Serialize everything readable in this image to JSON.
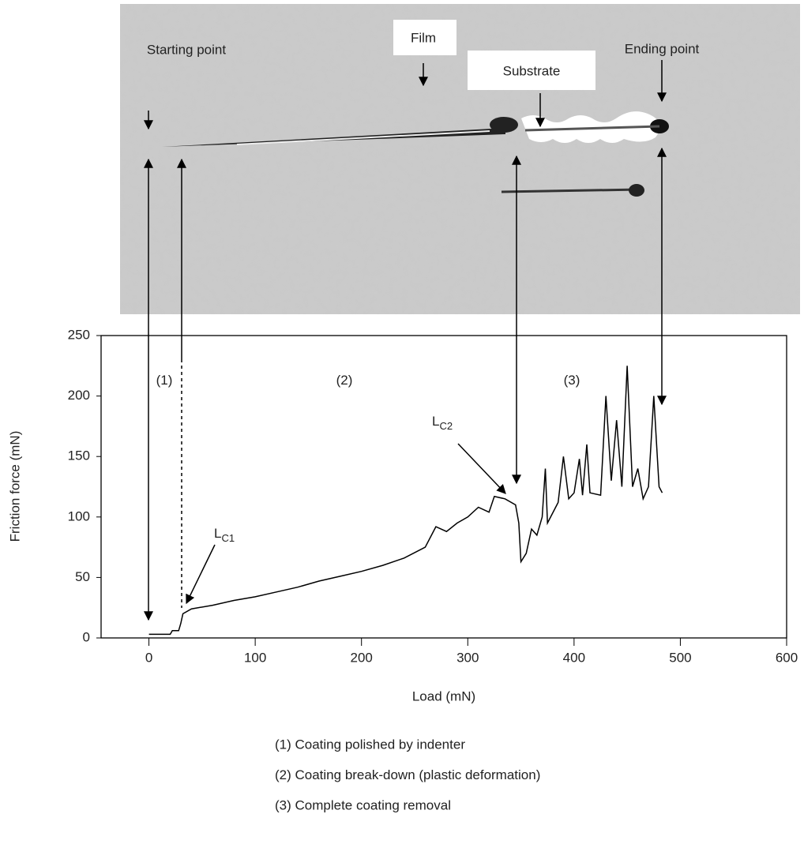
{
  "chart_data": {
    "type": "line",
    "x_label": "Load (mN)",
    "y_label": "Friction force (mN)",
    "xlim": [
      -45,
      600
    ],
    "ylim": [
      0,
      250
    ],
    "xticks": [
      0,
      100,
      200,
      300,
      400,
      500,
      600
    ],
    "yticks": [
      0,
      50,
      100,
      150,
      200,
      250
    ],
    "series": [
      {
        "color": "#000000",
        "x": [
          0,
          20,
          22,
          28,
          30,
          32,
          40,
          60,
          80,
          100,
          120,
          140,
          160,
          180,
          200,
          220,
          240,
          260,
          270,
          280,
          290,
          300,
          310,
          320,
          325,
          335,
          345,
          348,
          350,
          355,
          360,
          365,
          370,
          373,
          375,
          385,
          390,
          395,
          400,
          405,
          408,
          412,
          415,
          425,
          430,
          435,
          440,
          445,
          450,
          455,
          460,
          465,
          470,
          475,
          478,
          480,
          483
        ],
        "values": [
          3,
          3,
          6,
          6,
          12,
          20,
          24,
          27,
          31,
          34,
          38,
          42,
          47,
          51,
          55,
          60,
          66,
          75,
          92,
          88,
          95,
          100,
          108,
          104,
          117,
          115,
          110,
          95,
          63,
          70,
          90,
          85,
          100,
          140,
          95,
          112,
          150,
          115,
          120,
          148,
          118,
          160,
          120,
          118,
          200,
          130,
          180,
          125,
          225,
          125,
          140,
          115,
          125,
          200,
          155,
          125,
          120
        ]
      }
    ],
    "annotations": [
      {
        "text": "(1)"
      },
      {
        "text": "(2)"
      },
      {
        "text": "(3)"
      },
      {
        "text": "L",
        "sub": "C1"
      },
      {
        "text": "L",
        "sub": "C2"
      }
    ],
    "image_labels": [
      "Starting point",
      "Film",
      "Substrate",
      "Ending point"
    ],
    "notes": [
      "(1) Coating polished by indenter",
      "(2) Coating break-down (plastic deformation)",
      "(3) Complete coating removal"
    ]
  }
}
